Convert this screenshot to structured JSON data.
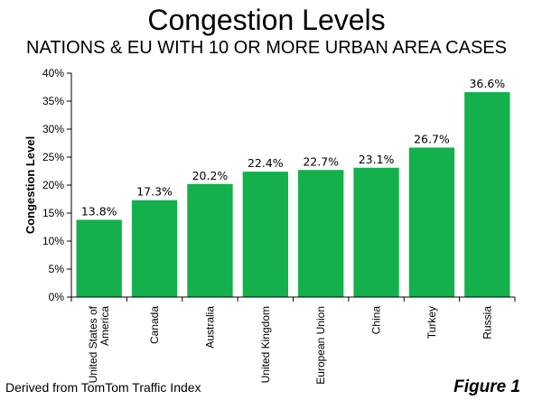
{
  "chart_data": {
    "type": "bar",
    "title": "Congestion Levels",
    "subtitle": "NATIONS & EU WITH 10 OR MORE URBAN AREA CASES",
    "ylabel": "Congestion Level",
    "xlabel": "",
    "categories": [
      [
        "United States of",
        "America"
      ],
      [
        "Canada"
      ],
      [
        "Australia"
      ],
      [
        "United Kingdom"
      ],
      [
        "European Union"
      ],
      [
        "China"
      ],
      [
        "Turkey"
      ],
      [
        "Russia"
      ]
    ],
    "values": [
      13.8,
      17.3,
      20.2,
      22.4,
      22.7,
      23.1,
      26.7,
      36.6
    ],
    "data_labels": [
      "13.8%",
      "17.3%",
      "20.2%",
      "22.4%",
      "22.7%",
      "23.1%",
      "26.7%",
      "36.6%"
    ],
    "ylim": [
      0,
      40
    ],
    "yticks": [
      0,
      5,
      10,
      15,
      20,
      25,
      30,
      35,
      40
    ],
    "ytick_labels": [
      "0%",
      "5%",
      "10%",
      "15%",
      "20%",
      "25%",
      "30%",
      "35%",
      "40%"
    ],
    "grid": false,
    "bar_color": "#14b04c",
    "source": "Derived from TomTom Traffic Index",
    "figure_label": "Figure 1"
  }
}
